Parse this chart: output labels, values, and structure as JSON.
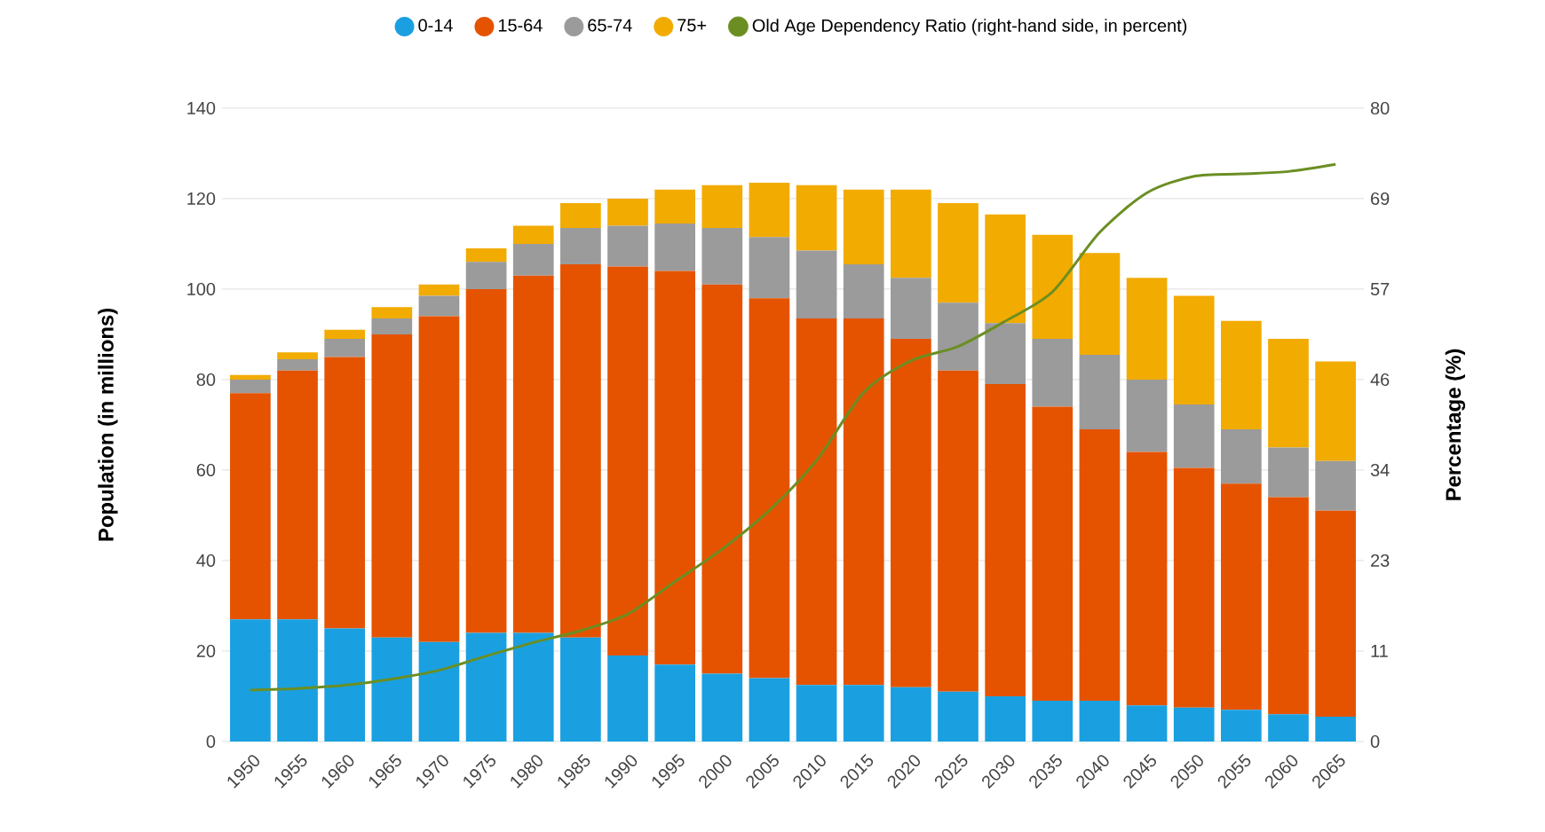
{
  "chart_data": {
    "type": "bar",
    "stacked": true,
    "legend": "top",
    "grid": "y",
    "ylabel": "Population (in millions)",
    "y2label": "Percentage (%)",
    "categories": [
      "1950",
      "1955",
      "1960",
      "1965",
      "1970",
      "1975",
      "1980",
      "1985",
      "1990",
      "1995",
      "2000",
      "2005",
      "2010",
      "2015",
      "2020",
      "2025",
      "2030",
      "2035",
      "2040",
      "2045",
      "2050",
      "2055",
      "2060",
      "2065"
    ],
    "series": [
      {
        "name": "0-14",
        "color": "#1aa0e0",
        "values": [
          27,
          27,
          25,
          23,
          22,
          24,
          24,
          23,
          19,
          17,
          15,
          14,
          12.5,
          12.5,
          12,
          11,
          10,
          9,
          9,
          8,
          7.5,
          7,
          6,
          5.5
        ]
      },
      {
        "name": "15-64",
        "color": "#e55300",
        "values": [
          50,
          55,
          60,
          67,
          72,
          76,
          79,
          82.5,
          86,
          87,
          86,
          84,
          81,
          81,
          77,
          71,
          69,
          65,
          60,
          56,
          53,
          50,
          48,
          45.5
        ]
      },
      {
        "name": "65-74",
        "color": "#9b9b9b",
        "values": [
          3,
          2.5,
          4,
          3.5,
          4.5,
          6,
          7,
          8,
          9,
          10.5,
          12.5,
          13.5,
          15,
          12,
          13.5,
          15,
          13.5,
          15,
          16.5,
          16,
          14,
          12,
          11,
          11
        ]
      },
      {
        "name": "75+",
        "color": "#f2ab00",
        "values": [
          1,
          1.5,
          2,
          2.5,
          2.5,
          3,
          4,
          5.5,
          6,
          7.5,
          9.5,
          12,
          14.5,
          16.5,
          19.5,
          22,
          24,
          23,
          22.5,
          22.5,
          24,
          24,
          24,
          22
        ]
      },
      {
        "name": "Old Age Dependency Ratio (right-hand side, in percent)",
        "color": "#6b8e23",
        "type": "line",
        "axis": "y2",
        "values": [
          6.5,
          6.7,
          7.1,
          7.9,
          9,
          10.8,
          12.5,
          14,
          16.1,
          20.2,
          24.3,
          29.2,
          35.5,
          44.1,
          48.1,
          49.9,
          53.1,
          56.8,
          64.3,
          69.3,
          71.4,
          71.7,
          72,
          72.9
        ]
      }
    ],
    "ylim": [
      0,
      140
    ],
    "yticks": [
      0,
      20,
      40,
      60,
      80,
      100,
      120,
      140
    ],
    "y2lim": [
      0,
      80
    ],
    "y2ticks": [
      0,
      {
        "value": 11.43,
        "label": "11"
      },
      {
        "value": 22.86,
        "label": "23"
      },
      {
        "value": 34.29,
        "label": "34"
      },
      {
        "value": 45.71,
        "label": "46"
      },
      {
        "value": 57.14,
        "label": "57"
      },
      {
        "value": 68.57,
        "label": "69"
      },
      80
    ]
  }
}
